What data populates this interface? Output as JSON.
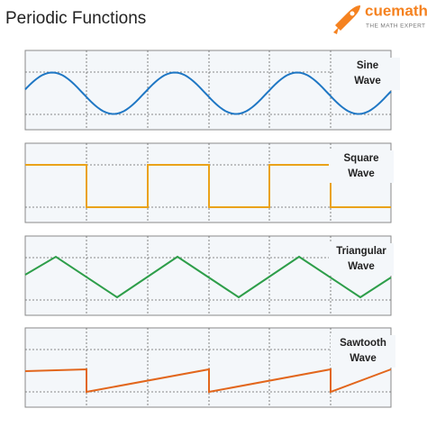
{
  "header": {
    "title": "Periodic Functions",
    "brand": "cuemath",
    "tagline": "THE MATH EXPERT"
  },
  "panels": [
    {
      "label": [
        "Sine",
        "Wave"
      ]
    },
    {
      "label": [
        "Square",
        "Wave"
      ]
    },
    {
      "label": [
        "Triangular",
        "Wave"
      ]
    },
    {
      "label": [
        "Sawtooth",
        "Wave"
      ]
    }
  ]
}
